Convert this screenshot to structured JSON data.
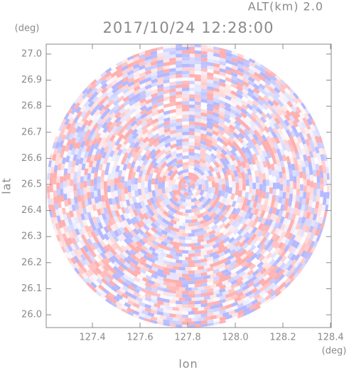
{
  "chart_data": {
    "type": "radar-field",
    "title": "2017/10/24 12:28:00",
    "subtitle": "ALT(km) 2.0",
    "x_label": "lon",
    "y_label": "lat",
    "x_unit": "(deg)",
    "y_unit": "(deg)",
    "xlim": [
      127.206,
      128.403
    ],
    "ylim": [
      25.951,
      27.038
    ],
    "xticks": [
      127.4,
      127.6,
      127.8,
      {
        "value": 128,
        "label": "128.0"
      },
      128.2,
      128.4
    ],
    "yticks": [
      {
        "value": 26,
        "label": "26.0"
      },
      26.1,
      26.2,
      26.3,
      26.4,
      26.5,
      26.6,
      26.7,
      26.8,
      26.9,
      {
        "value": 27,
        "label": "27.0"
      }
    ]
  }
}
